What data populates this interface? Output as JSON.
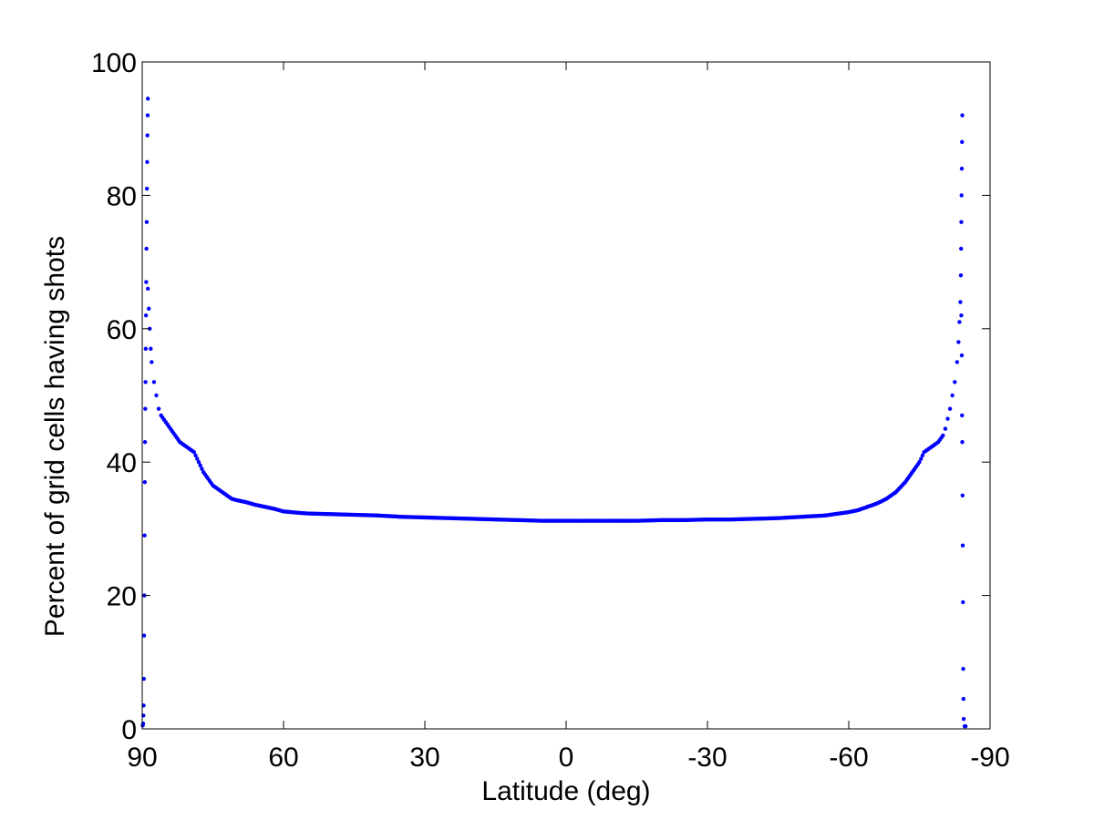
{
  "chart_data": {
    "type": "scatter",
    "title": "",
    "xlabel": "Latitude (deg)",
    "ylabel": "Percent of grid cells having shots",
    "xlim": [
      90,
      -90
    ],
    "ylim": [
      0,
      100
    ],
    "x_reversed": true,
    "grid": false,
    "legend": "none",
    "xticks": [
      90,
      60,
      30,
      0,
      -30,
      -60,
      -90
    ],
    "yticks": [
      0,
      20,
      40,
      60,
      80,
      100
    ],
    "marker_color": "#0000ff",
    "series": [
      {
        "points": [
          [
            89.9,
            0.5
          ],
          [
            89.8,
            0.8
          ],
          [
            89.75,
            2
          ],
          [
            89.7,
            3.5
          ],
          [
            89.65,
            7.5
          ],
          [
            89.6,
            14
          ],
          [
            89.55,
            20
          ],
          [
            89.5,
            29
          ],
          [
            89.45,
            37
          ],
          [
            89.4,
            43
          ],
          [
            89.35,
            48
          ],
          [
            89.3,
            52
          ],
          [
            89.25,
            57
          ],
          [
            89.2,
            62
          ],
          [
            89.15,
            67
          ],
          [
            89.1,
            72
          ],
          [
            89.05,
            76
          ],
          [
            89.0,
            81
          ],
          [
            88.95,
            85
          ],
          [
            88.9,
            89
          ],
          [
            88.85,
            92
          ],
          [
            88.8,
            94.5
          ],
          [
            88.8,
            66
          ],
          [
            88.6,
            63
          ],
          [
            88.4,
            60
          ],
          [
            88.2,
            57
          ],
          [
            88.0,
            55
          ],
          [
            87.5,
            52
          ],
          [
            87.0,
            50
          ],
          [
            86.5,
            48
          ],
          [
            86.0,
            47
          ],
          [
            85.0,
            46
          ],
          [
            84.0,
            45
          ],
          [
            83.0,
            44
          ],
          [
            82.0,
            43
          ],
          [
            81.0,
            42.5
          ],
          [
            80.0,
            42
          ],
          [
            79.0,
            41.5
          ],
          [
            78.0,
            40
          ],
          [
            77.0,
            38.5
          ],
          [
            76.0,
            37.5
          ],
          [
            75.0,
            36.5
          ],
          [
            74.0,
            36
          ],
          [
            73.0,
            35.5
          ],
          [
            72.0,
            35
          ],
          [
            71.0,
            34.5
          ],
          [
            70.0,
            34.3
          ],
          [
            68.0,
            34
          ],
          [
            66.0,
            33.6
          ],
          [
            64.0,
            33.3
          ],
          [
            62.0,
            33
          ],
          [
            60.0,
            32.6
          ],
          [
            55.0,
            32.3
          ],
          [
            50.0,
            32.2
          ],
          [
            45.0,
            32.1
          ],
          [
            40.0,
            32
          ],
          [
            35.0,
            31.8
          ],
          [
            30.0,
            31.7
          ],
          [
            25.0,
            31.6
          ],
          [
            20.0,
            31.5
          ],
          [
            15.0,
            31.4
          ],
          [
            10.0,
            31.3
          ],
          [
            5.0,
            31.2
          ],
          [
            0.0,
            31.2
          ],
          [
            -5.0,
            31.2
          ],
          [
            -10.0,
            31.2
          ],
          [
            -15.0,
            31.2
          ],
          [
            -20.0,
            31.3
          ],
          [
            -25.0,
            31.3
          ],
          [
            -30.0,
            31.4
          ],
          [
            -35.0,
            31.4
          ],
          [
            -40.0,
            31.5
          ],
          [
            -45.0,
            31.6
          ],
          [
            -50.0,
            31.8
          ],
          [
            -55.0,
            32
          ],
          [
            -58.0,
            32.3
          ],
          [
            -60.0,
            32.5
          ],
          [
            -62.0,
            32.8
          ],
          [
            -64.0,
            33.3
          ],
          [
            -66.0,
            33.8
          ],
          [
            -68.0,
            34.5
          ],
          [
            -70.0,
            35.5
          ],
          [
            -72.0,
            37
          ],
          [
            -74.0,
            39
          ],
          [
            -75.0,
            40
          ],
          [
            -76.0,
            41.5
          ],
          [
            -77.0,
            42
          ],
          [
            -78.0,
            42.5
          ],
          [
            -79.0,
            43
          ],
          [
            -80.0,
            44
          ],
          [
            -80.5,
            45
          ],
          [
            -81.0,
            46.5
          ],
          [
            -81.5,
            48
          ],
          [
            -82.0,
            50
          ],
          [
            -82.5,
            52
          ],
          [
            -83.0,
            55
          ],
          [
            -83.3,
            58
          ],
          [
            -83.5,
            61
          ],
          [
            -83.7,
            64
          ],
          [
            -83.8,
            68
          ],
          [
            -83.85,
            72
          ],
          [
            -83.9,
            76
          ],
          [
            -83.95,
            80
          ],
          [
            -84.0,
            84
          ],
          [
            -84.05,
            88
          ],
          [
            -84.1,
            92
          ],
          [
            -83.9,
            62
          ],
          [
            -84.0,
            56
          ],
          [
            -84.05,
            47
          ],
          [
            -84.1,
            43
          ],
          [
            -84.15,
            35
          ],
          [
            -84.2,
            27.5
          ],
          [
            -84.25,
            19
          ],
          [
            -84.3,
            9
          ],
          [
            -84.35,
            4.5
          ],
          [
            -84.4,
            1.5
          ],
          [
            -84.6,
            0.4
          ],
          [
            -84.8,
            0.4
          ]
        ]
      }
    ]
  }
}
